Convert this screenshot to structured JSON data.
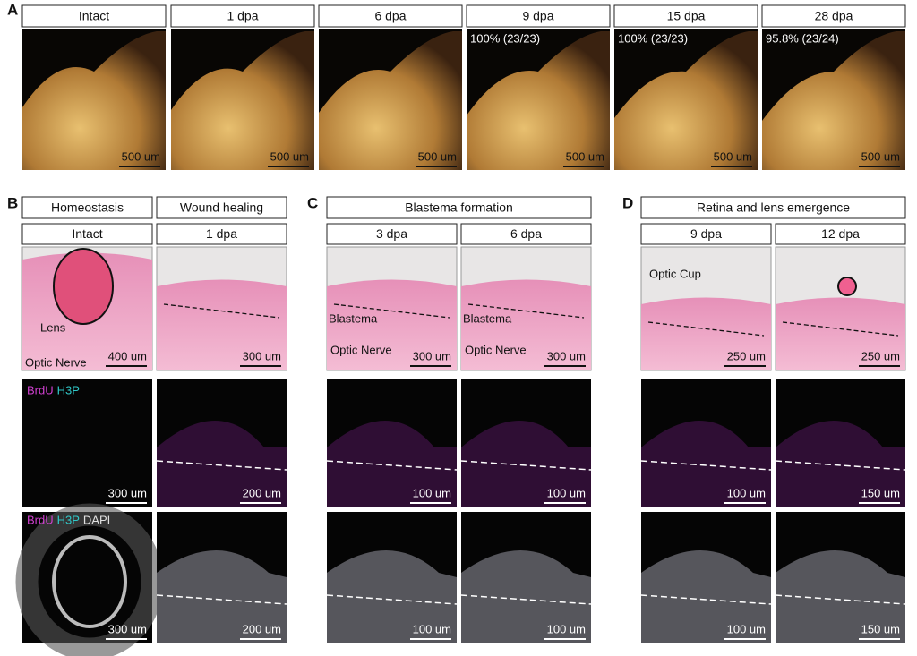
{
  "panel_a": {
    "label": "A",
    "images": [
      {
        "header": "Intact",
        "scale": "500 um"
      },
      {
        "header": "1 dpa",
        "scale": "500 um"
      },
      {
        "header": "6 dpa",
        "scale": "500 um"
      },
      {
        "header": "9 dpa",
        "note": "100% (23/23)",
        "scale": "500 um"
      },
      {
        "header": "15 dpa",
        "note": "100% (23/23)",
        "scale": "500 um"
      },
      {
        "header": "28 dpa",
        "note": "95.8% (23/24)",
        "scale": "500 um"
      }
    ]
  },
  "panels": [
    {
      "label": "B",
      "fluo_channels": [
        "BrdU",
        "H3P"
      ],
      "merge_channels": [
        "BrdU",
        "H3P",
        "DAPI"
      ],
      "groups": [
        {
          "title": "Homeostasis",
          "columns": [
            {
              "header": "Intact",
              "he_labels": [
                "Lens",
                "Optic Nerve"
              ],
              "he_scale": "400 um",
              "fluo_scale": "300 um",
              "merge_scale": "300 um"
            }
          ]
        },
        {
          "title": "Wound healing",
          "columns": [
            {
              "header": "1 dpa",
              "he_scale": "300 um",
              "fluo_scale": "200 um",
              "merge_scale": "200 um"
            }
          ]
        }
      ]
    },
    {
      "label": "C",
      "groups": [
        {
          "title": "Blastema formation",
          "columns": [
            {
              "header": "3 dpa",
              "he_labels": [
                "Blastema",
                "Optic Nerve"
              ],
              "he_scale": "300 um",
              "fluo_scale": "100 um",
              "merge_scale": "100 um"
            },
            {
              "header": "6 dpa",
              "he_labels": [
                "Blastema",
                "Optic Nerve"
              ],
              "he_scale": "300 um",
              "fluo_scale": "100 um",
              "merge_scale": "100 um"
            }
          ]
        }
      ]
    },
    {
      "label": "D",
      "groups": [
        {
          "title": "Retina and lens emergence",
          "columns": [
            {
              "header": "9 dpa",
              "he_labels": [
                "Optic Cup"
              ],
              "he_scale": "250 um",
              "fluo_scale": "100 um",
              "merge_scale": "100 um"
            },
            {
              "header": "12 dpa",
              "he_scale": "250 um",
              "fluo_scale": "150 um",
              "merge_scale": "150 um"
            }
          ]
        }
      ]
    }
  ]
}
